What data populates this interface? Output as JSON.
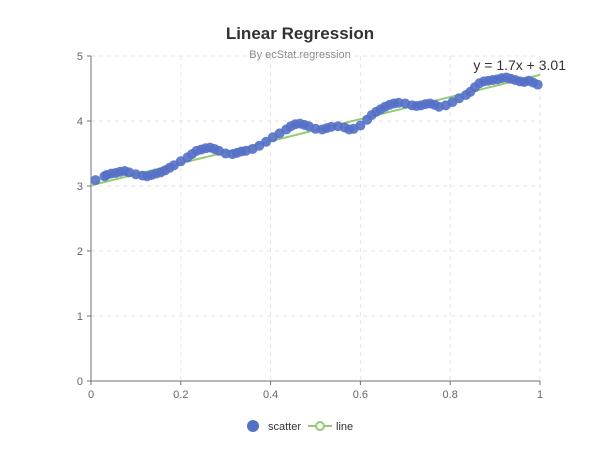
{
  "chart_data": {
    "type": "scatter",
    "title": "Linear Regression",
    "subtitle": "By ecStat.regression",
    "xlim": [
      0,
      1
    ],
    "ylim": [
      0,
      5
    ],
    "x_ticks": [
      "0",
      "0.2",
      "0.4",
      "0.6",
      "0.8",
      "1"
    ],
    "y_ticks": [
      "0",
      "1",
      "2",
      "3",
      "4",
      "5"
    ],
    "grid": true,
    "legend_position": "bottom-center",
    "equation": "y = 1.7x + 3.01",
    "colors": {
      "scatter": "#5470c6",
      "line": "#91cc75"
    },
    "series": [
      {
        "name": "scatter",
        "type": "scatter",
        "points": [
          [
            0.01,
            3.09
          ],
          [
            0.03,
            3.15
          ],
          [
            0.035,
            3.17
          ],
          [
            0.045,
            3.19
          ],
          [
            0.055,
            3.2
          ],
          [
            0.065,
            3.22
          ],
          [
            0.075,
            3.23
          ],
          [
            0.085,
            3.21
          ],
          [
            0.1,
            3.18
          ],
          [
            0.115,
            3.16
          ],
          [
            0.125,
            3.15
          ],
          [
            0.135,
            3.17
          ],
          [
            0.145,
            3.19
          ],
          [
            0.155,
            3.21
          ],
          [
            0.165,
            3.24
          ],
          [
            0.175,
            3.28
          ],
          [
            0.185,
            3.32
          ],
          [
            0.2,
            3.38
          ],
          [
            0.215,
            3.44
          ],
          [
            0.225,
            3.49
          ],
          [
            0.235,
            3.54
          ],
          [
            0.245,
            3.56
          ],
          [
            0.255,
            3.58
          ],
          [
            0.265,
            3.59
          ],
          [
            0.275,
            3.57
          ],
          [
            0.285,
            3.54
          ],
          [
            0.3,
            3.5
          ],
          [
            0.315,
            3.49
          ],
          [
            0.325,
            3.51
          ],
          [
            0.335,
            3.53
          ],
          [
            0.345,
            3.54
          ],
          [
            0.36,
            3.57
          ],
          [
            0.375,
            3.62
          ],
          [
            0.39,
            3.68
          ],
          [
            0.405,
            3.75
          ],
          [
            0.42,
            3.81
          ],
          [
            0.435,
            3.87
          ],
          [
            0.445,
            3.92
          ],
          [
            0.455,
            3.95
          ],
          [
            0.465,
            3.96
          ],
          [
            0.475,
            3.94
          ],
          [
            0.485,
            3.92
          ],
          [
            0.5,
            3.88
          ],
          [
            0.515,
            3.87
          ],
          [
            0.525,
            3.89
          ],
          [
            0.535,
            3.91
          ],
          [
            0.55,
            3.92
          ],
          [
            0.565,
            3.9
          ],
          [
            0.575,
            3.87
          ],
          [
            0.585,
            3.88
          ],
          [
            0.6,
            3.93
          ],
          [
            0.615,
            4.02
          ],
          [
            0.625,
            4.09
          ],
          [
            0.635,
            4.14
          ],
          [
            0.645,
            4.18
          ],
          [
            0.655,
            4.22
          ],
          [
            0.665,
            4.25
          ],
          [
            0.675,
            4.27
          ],
          [
            0.685,
            4.28
          ],
          [
            0.7,
            4.27
          ],
          [
            0.715,
            4.24
          ],
          [
            0.725,
            4.23
          ],
          [
            0.735,
            4.24
          ],
          [
            0.745,
            4.26
          ],
          [
            0.755,
            4.27
          ],
          [
            0.765,
            4.25
          ],
          [
            0.775,
            4.22
          ],
          [
            0.79,
            4.24
          ],
          [
            0.805,
            4.29
          ],
          [
            0.82,
            4.35
          ],
          [
            0.835,
            4.4
          ],
          [
            0.845,
            4.45
          ],
          [
            0.855,
            4.52
          ],
          [
            0.865,
            4.58
          ],
          [
            0.875,
            4.61
          ],
          [
            0.885,
            4.62
          ],
          [
            0.895,
            4.63
          ],
          [
            0.905,
            4.64
          ],
          [
            0.915,
            4.66
          ],
          [
            0.925,
            4.67
          ],
          [
            0.935,
            4.65
          ],
          [
            0.945,
            4.63
          ],
          [
            0.955,
            4.61
          ],
          [
            0.965,
            4.6
          ],
          [
            0.975,
            4.62
          ],
          [
            0.985,
            4.59
          ],
          [
            0.995,
            4.56
          ]
        ]
      },
      {
        "name": "line",
        "type": "line",
        "points": [
          [
            0,
            3.01
          ],
          [
            1,
            4.71
          ]
        ]
      }
    ]
  }
}
